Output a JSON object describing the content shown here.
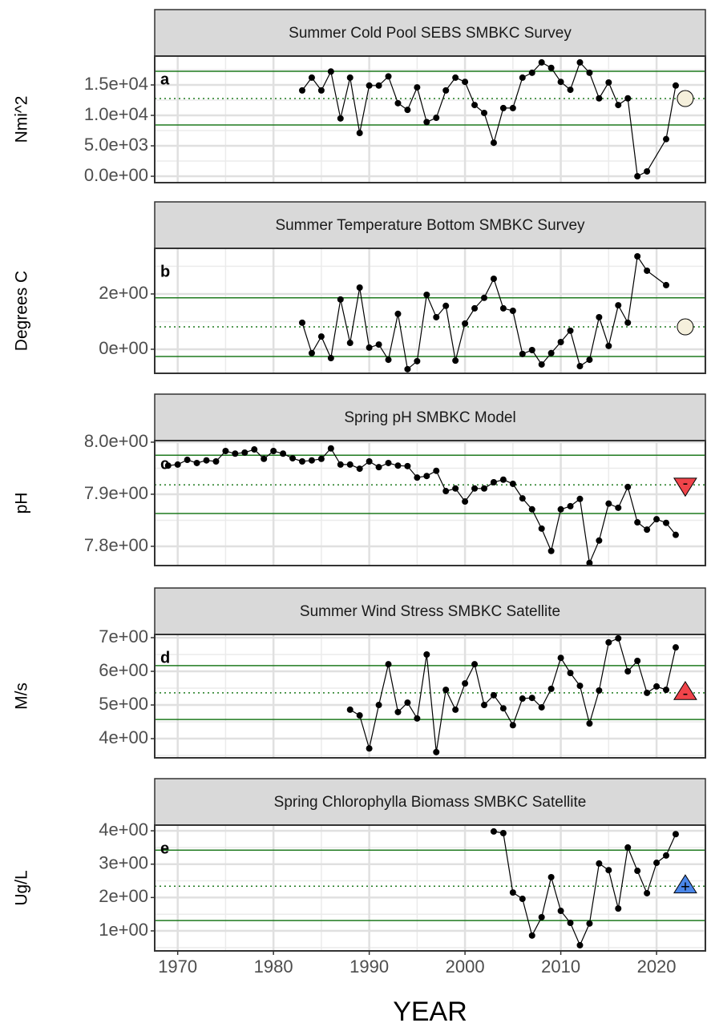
{
  "chart_data": [
    {
      "type": "line",
      "title": "Summer Cold Pool SEBS SMBKC Survey",
      "ylabel": "Nmi^2",
      "panel_label": "a",
      "color": "#000000",
      "x": [
        1983,
        1984,
        1985,
        1986,
        1987,
        1988,
        1989,
        1990,
        1991,
        1992,
        1993,
        1994,
        1995,
        1996,
        1997,
        1998,
        1999,
        2000,
        2001,
        2002,
        2003,
        2004,
        2005,
        2006,
        2007,
        2008,
        2009,
        2010,
        2011,
        2012,
        2013,
        2014,
        2015,
        2016,
        2017,
        2018,
        2019,
        2021,
        2022
      ],
      "values": [
        14100,
        16200,
        14100,
        17200,
        9500,
        16200,
        7100,
        14900,
        14900,
        16400,
        12000,
        10900,
        14600,
        8900,
        9600,
        14100,
        16200,
        15500,
        11700,
        10400,
        5500,
        11200,
        11200,
        16200,
        17000,
        18700,
        17800,
        15500,
        14200,
        18700,
        17000,
        12800,
        15400,
        11700,
        12800,
        0,
        800,
        6100,
        14900
      ],
      "xlim": [
        1967.6,
        2025.1
      ],
      "xticks": [
        1970,
        1980,
        1990,
        2000,
        2010,
        2020
      ],
      "ylim": [
        -1050,
        19740
      ],
      "yticks": [
        {
          "value": 0,
          "label": "0.0e+00"
        },
        {
          "value": 5000,
          "label": "5.0e+03"
        },
        {
          "value": 10000,
          "label": "1.0e+04"
        },
        {
          "value": 15000,
          "label": "1.5e+04"
        }
      ],
      "ref_color": "#1f7a1f",
      "mean": 12760,
      "upper": 17240,
      "lower": 8420,
      "status": {
        "x": 2023,
        "y": 12760,
        "shape": "circle",
        "color": "#f5f0dc"
      },
      "grid": true
    },
    {
      "type": "line",
      "title": "Summer Temperature Bottom SMBKC Survey",
      "ylabel": "Degrees C",
      "panel_label": "b",
      "color": "#000000",
      "x": [
        1983,
        1984,
        1985,
        1986,
        1987,
        1988,
        1989,
        1990,
        1991,
        1992,
        1993,
        1994,
        1995,
        1996,
        1997,
        1998,
        1999,
        2000,
        2001,
        2002,
        2003,
        2004,
        2005,
        2006,
        2007,
        2008,
        2009,
        2010,
        2011,
        2012,
        2013,
        2014,
        2015,
        2016,
        2017,
        2018,
        2019,
        2021
      ],
      "values": [
        0.96,
        -0.14,
        0.46,
        -0.32,
        1.8,
        0.23,
        2.23,
        0.06,
        0.17,
        -0.38,
        1.28,
        -0.72,
        -0.43,
        1.97,
        1.16,
        1.57,
        -0.41,
        0.93,
        1.48,
        1.86,
        2.55,
        1.48,
        1.39,
        -0.17,
        -0.03,
        -0.55,
        -0.14,
        0.26,
        0.67,
        -0.61,
        -0.38,
        1.16,
        0.12,
        1.59,
        0.96,
        3.36,
        2.84,
        2.32
      ],
      "xlim": [
        1967.6,
        2025.1
      ],
      "xticks": [
        1970,
        1980,
        1990,
        2000,
        2010,
        2020
      ],
      "ylim": [
        -0.87,
        3.65
      ],
      "yticks": [
        {
          "value": 0,
          "label": "0e+00"
        },
        {
          "value": 2,
          "label": "2e+00"
        }
      ],
      "ref_color": "#1f7a1f",
      "mean": 0.81,
      "upper": 1.86,
      "lower": -0.26,
      "status": {
        "x": 2023,
        "y": 0.81,
        "shape": "circle",
        "color": "#f5f0dc"
      },
      "grid": true
    },
    {
      "type": "line",
      "title": "Spring pH SMBKC Model",
      "ylabel": "pH",
      "panel_label": "c",
      "color": "#000000",
      "x": [
        1969,
        1970,
        1971,
        1972,
        1973,
        1974,
        1975,
        1976,
        1977,
        1978,
        1979,
        1980,
        1981,
        1982,
        1983,
        1984,
        1985,
        1986,
        1987,
        1988,
        1989,
        1990,
        1991,
        1992,
        1993,
        1994,
        1995,
        1996,
        1997,
        1998,
        1999,
        2000,
        2001,
        2002,
        2003,
        2004,
        2005,
        2006,
        2007,
        2008,
        2009,
        2010,
        2011,
        2012,
        2013,
        2014,
        2015,
        2016,
        2017,
        2018,
        2019,
        2020,
        2021,
        2022
      ],
      "values": [
        7.955,
        7.957,
        7.966,
        7.96,
        7.965,
        7.963,
        7.983,
        7.978,
        7.98,
        7.986,
        7.968,
        7.983,
        7.978,
        7.969,
        7.963,
        7.965,
        7.968,
        7.988,
        7.957,
        7.957,
        7.949,
        7.963,
        7.952,
        7.96,
        7.955,
        7.954,
        7.932,
        7.935,
        7.945,
        7.906,
        7.911,
        7.886,
        7.911,
        7.911,
        7.923,
        7.928,
        7.92,
        7.892,
        7.871,
        7.834,
        7.791,
        7.871,
        7.877,
        7.891,
        7.768,
        7.811,
        7.882,
        7.874,
        7.914,
        7.846,
        7.832,
        7.852,
        7.845,
        7.822
      ],
      "xlim": [
        1967.6,
        2025.1
      ],
      "xticks": [
        1970,
        1980,
        1990,
        2000,
        2010,
        2020
      ],
      "ylim": [
        7.763,
        8.003
      ],
      "yticks": [
        {
          "value": 7.8,
          "label": "7.8e+00"
        },
        {
          "value": 7.9,
          "label": "7.9e+00"
        },
        {
          "value": 8.0,
          "label": "8.0e+00"
        }
      ],
      "ref_color": "#1f7a1f",
      "mean": 7.918,
      "upper": 7.975,
      "lower": 7.863,
      "status": {
        "x": 2023,
        "y": 7.918,
        "shape": "triangle-down",
        "color": "#f0444a",
        "label": "-"
      },
      "grid": true
    },
    {
      "type": "line",
      "title": "Summer Wind Stress SMBKC Satellite",
      "ylabel": "M/s",
      "panel_label": "d",
      "color": "#000000",
      "x": [
        1988,
        1989,
        1990,
        1991,
        1992,
        1993,
        1994,
        1995,
        1996,
        1997,
        1998,
        1999,
        2000,
        2001,
        2002,
        2003,
        2004,
        2005,
        2006,
        2007,
        2008,
        2009,
        2010,
        2011,
        2012,
        2013,
        2014,
        2015,
        2016,
        2017,
        2018,
        2019,
        2020,
        2021,
        2022
      ],
      "values": [
        4.86,
        4.69,
        3.71,
        5.0,
        6.21,
        4.79,
        5.07,
        4.6,
        6.5,
        3.6,
        5.45,
        4.86,
        5.64,
        6.21,
        5.0,
        5.29,
        4.9,
        4.4,
        5.19,
        5.21,
        4.93,
        5.48,
        6.4,
        5.95,
        5.57,
        4.45,
        5.43,
        6.86,
        6.98,
        6.0,
        6.31,
        5.36,
        5.55,
        5.45,
        6.71
      ],
      "xlim": [
        1967.6,
        2025.1
      ],
      "xticks": [
        1970,
        1980,
        1990,
        2000,
        2010,
        2020
      ],
      "ylim": [
        3.43,
        7.095
      ],
      "yticks": [
        {
          "value": 4,
          "label": "4e+00"
        },
        {
          "value": 5,
          "label": "5e+00"
        },
        {
          "value": 6,
          "label": "6e+00"
        },
        {
          "value": 7,
          "label": "7e+00"
        }
      ],
      "ref_color": "#1f7a1f",
      "mean": 5.36,
      "upper": 6.17,
      "lower": 4.57,
      "status": {
        "x": 2023,
        "y": 5.36,
        "shape": "triangle-up",
        "color": "#f0444a",
        "label": "-"
      },
      "grid": true
    },
    {
      "type": "line",
      "title": "Spring Chlorophylla Biomass SMBKC Satellite",
      "ylabel": "Ug/L",
      "panel_label": "e",
      "color": "#000000",
      "xlabel": "YEAR",
      "x": [
        2003,
        2004,
        2005,
        2006,
        2007,
        2008,
        2009,
        2010,
        2011,
        2012,
        2013,
        2014,
        2015,
        2016,
        2017,
        2018,
        2019,
        2020,
        2021,
        2022
      ],
      "values": [
        3.98,
        3.93,
        2.15,
        1.96,
        0.86,
        1.41,
        2.61,
        1.6,
        1.24,
        0.57,
        1.22,
        3.02,
        2.82,
        1.67,
        3.5,
        2.8,
        2.13,
        3.04,
        3.26,
        3.9
      ],
      "xlim": [
        1967.6,
        2025.1
      ],
      "xticks": [
        1970,
        1980,
        1990,
        2000,
        2010,
        2020
      ],
      "ylim": [
        0.4,
        4.17
      ],
      "yticks": [
        {
          "value": 1,
          "label": "1e+00"
        },
        {
          "value": 2,
          "label": "2e+00"
        },
        {
          "value": 3,
          "label": "3e+00"
        },
        {
          "value": 4,
          "label": "4e+00"
        }
      ],
      "ref_color": "#1f7a1f",
      "mean": 2.34,
      "upper": 3.42,
      "lower": 1.31,
      "status": {
        "x": 2023,
        "y": 2.34,
        "shape": "triangle-up",
        "color": "#4a86e8",
        "label": "+"
      },
      "grid": true
    }
  ]
}
